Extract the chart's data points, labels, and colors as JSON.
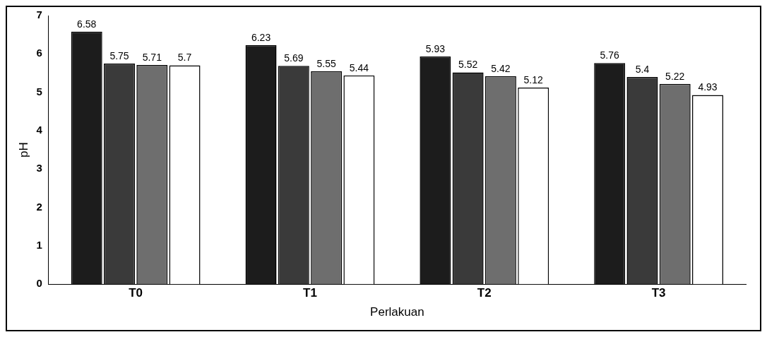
{
  "chart_data": {
    "type": "bar",
    "xlabel": "Perlakuan",
    "ylabel": "pH",
    "categories": [
      "T0",
      "T1",
      "T2",
      "T3"
    ],
    "series": [
      {
        "color": "#1c1c1c",
        "values": [
          6.58,
          6.23,
          5.93,
          5.76
        ]
      },
      {
        "color": "#3a3a3a",
        "values": [
          5.75,
          5.69,
          5.52,
          5.4
        ]
      },
      {
        "color": "#6e6e6e",
        "values": [
          5.71,
          5.55,
          5.42,
          5.22
        ]
      },
      {
        "color": "#ffffff",
        "values": [
          5.7,
          5.44,
          5.12,
          4.93
        ]
      }
    ],
    "ylim": [
      0,
      7
    ],
    "yticks": [
      0,
      1,
      2,
      3,
      4,
      5,
      6,
      7
    ],
    "grid": false,
    "legend": false,
    "data_labels": true
  }
}
